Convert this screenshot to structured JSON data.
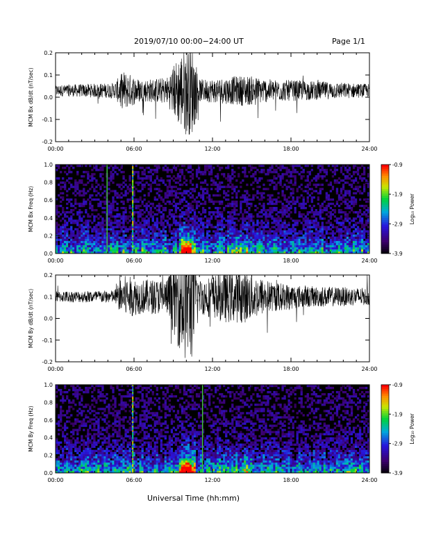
{
  "page": {
    "title": "2019/07/10  00:00−24:00 UT",
    "page_number": "Page 1/1",
    "xaxis_label": "Universal Time (hh:mm)"
  },
  "chart_data": [
    {
      "type": "line",
      "ylabel": "MCM Bx dB/dt (nT/sec)",
      "xlim": [
        0,
        24
      ],
      "ylim": [
        -0.2,
        0.2
      ],
      "yticks": [
        "-0.2",
        "-0.1",
        "0.0",
        "0.1",
        "0.2"
      ],
      "xticks": [
        "00:00",
        "06:00",
        "12:00",
        "18:00",
        "24:00"
      ],
      "baseline": 0.03,
      "envelope": [
        {
          "t": 0,
          "a": 0.025
        },
        {
          "t": 4.5,
          "a": 0.035
        },
        {
          "t": 5.2,
          "a": 0.09
        },
        {
          "t": 6.5,
          "a": 0.05
        },
        {
          "t": 8.5,
          "a": 0.06
        },
        {
          "t": 9.8,
          "a": 0.2
        },
        {
          "t": 10.5,
          "a": 0.2
        },
        {
          "t": 11.0,
          "a": 0.05
        },
        {
          "t": 13,
          "a": 0.06
        },
        {
          "t": 14.5,
          "a": 0.07
        },
        {
          "t": 16.5,
          "a": 0.05
        },
        {
          "t": 19,
          "a": 0.045
        },
        {
          "t": 24,
          "a": 0.03
        }
      ],
      "color": "#000000"
    },
    {
      "type": "heatmap",
      "ylabel": "MCM Bx Freq (Hz)",
      "xlim": [
        0,
        24
      ],
      "ylim": [
        0,
        1.0
      ],
      "yticks": [
        "0.0",
        "0.2",
        "0.4",
        "0.6",
        "0.8",
        "1.0"
      ],
      "xticks": [
        "00:00",
        "06:00",
        "12:00",
        "18:00",
        "24:00"
      ],
      "colorbar": {
        "label": "Log₁₀ Power",
        "range": [
          -3.9,
          -0.9
        ],
        "ticks": [
          "-0.9",
          "-1.9",
          "-2.9",
          "-3.9"
        ]
      },
      "events": [
        {
          "t": 3.9,
          "level": "green"
        },
        {
          "t": 5.85,
          "level": "multi"
        },
        {
          "t": 9.9,
          "level": "burst"
        }
      ]
    },
    {
      "type": "line",
      "ylabel": "MCM By dB/dt (nT/sec)",
      "xlim": [
        0,
        24
      ],
      "ylim": [
        -0.2,
        0.2
      ],
      "yticks": [
        "-0.2",
        "-0.1",
        "0.0",
        "0.1",
        "0.2"
      ],
      "xticks": [
        "00:00",
        "06:00",
        "12:00",
        "18:00",
        "24:00"
      ],
      "baseline": 0.1,
      "envelope": [
        {
          "t": 0,
          "a": 0.025
        },
        {
          "t": 4.5,
          "a": 0.03
        },
        {
          "t": 5.2,
          "a": 0.1
        },
        {
          "t": 6.5,
          "a": 0.08
        },
        {
          "t": 8.5,
          "a": 0.08
        },
        {
          "t": 9.8,
          "a": 0.3
        },
        {
          "t": 10.5,
          "a": 0.3
        },
        {
          "t": 11.0,
          "a": 0.08
        },
        {
          "t": 13,
          "a": 0.12
        },
        {
          "t": 14.5,
          "a": 0.12
        },
        {
          "t": 16.5,
          "a": 0.07
        },
        {
          "t": 19,
          "a": 0.05
        },
        {
          "t": 24,
          "a": 0.04
        }
      ],
      "color": "#000000"
    },
    {
      "type": "heatmap",
      "ylabel": "MCM By Freq (Hz)",
      "xlim": [
        0,
        24
      ],
      "ylim": [
        0,
        1.0
      ],
      "yticks": [
        "0.0",
        "0.2",
        "0.4",
        "0.6",
        "0.8",
        "1.0"
      ],
      "xticks": [
        "00:00",
        "06:00",
        "12:00",
        "18:00",
        "24:00"
      ],
      "colorbar": {
        "label": "Log₁₀ Power",
        "range": [
          -3.9,
          -0.9
        ],
        "ticks": [
          "-0.9",
          "-1.9",
          "-2.9",
          "-3.9"
        ]
      },
      "events": [
        {
          "t": 5.85,
          "level": "multi"
        },
        {
          "t": 9.9,
          "level": "burst"
        },
        {
          "t": 11.2,
          "level": "green"
        }
      ]
    }
  ]
}
